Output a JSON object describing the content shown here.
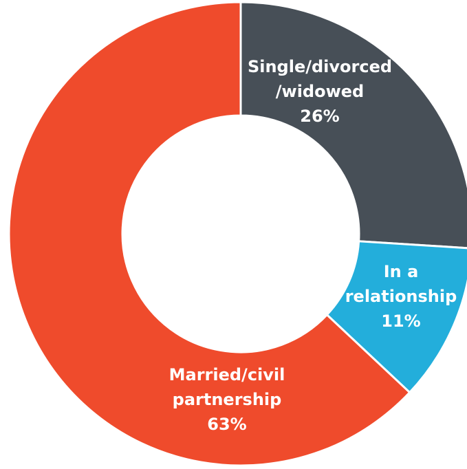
{
  "chart_data": {
    "type": "pie",
    "variant": "donut",
    "title": "",
    "slices": [
      {
        "label_lines": [
          "Single/divorced",
          "/widowed"
        ],
        "value_label": "26%",
        "value": 26,
        "color": "#474f57"
      },
      {
        "label_lines": [
          "In a",
          "relationship"
        ],
        "value_label": "11%",
        "value": 11,
        "color": "#23aedb"
      },
      {
        "label_lines": [
          "Married/civil",
          "partnership"
        ],
        "value_label": "63%",
        "value": 63,
        "color": "#ef4b2c"
      }
    ],
    "legend": "none"
  }
}
